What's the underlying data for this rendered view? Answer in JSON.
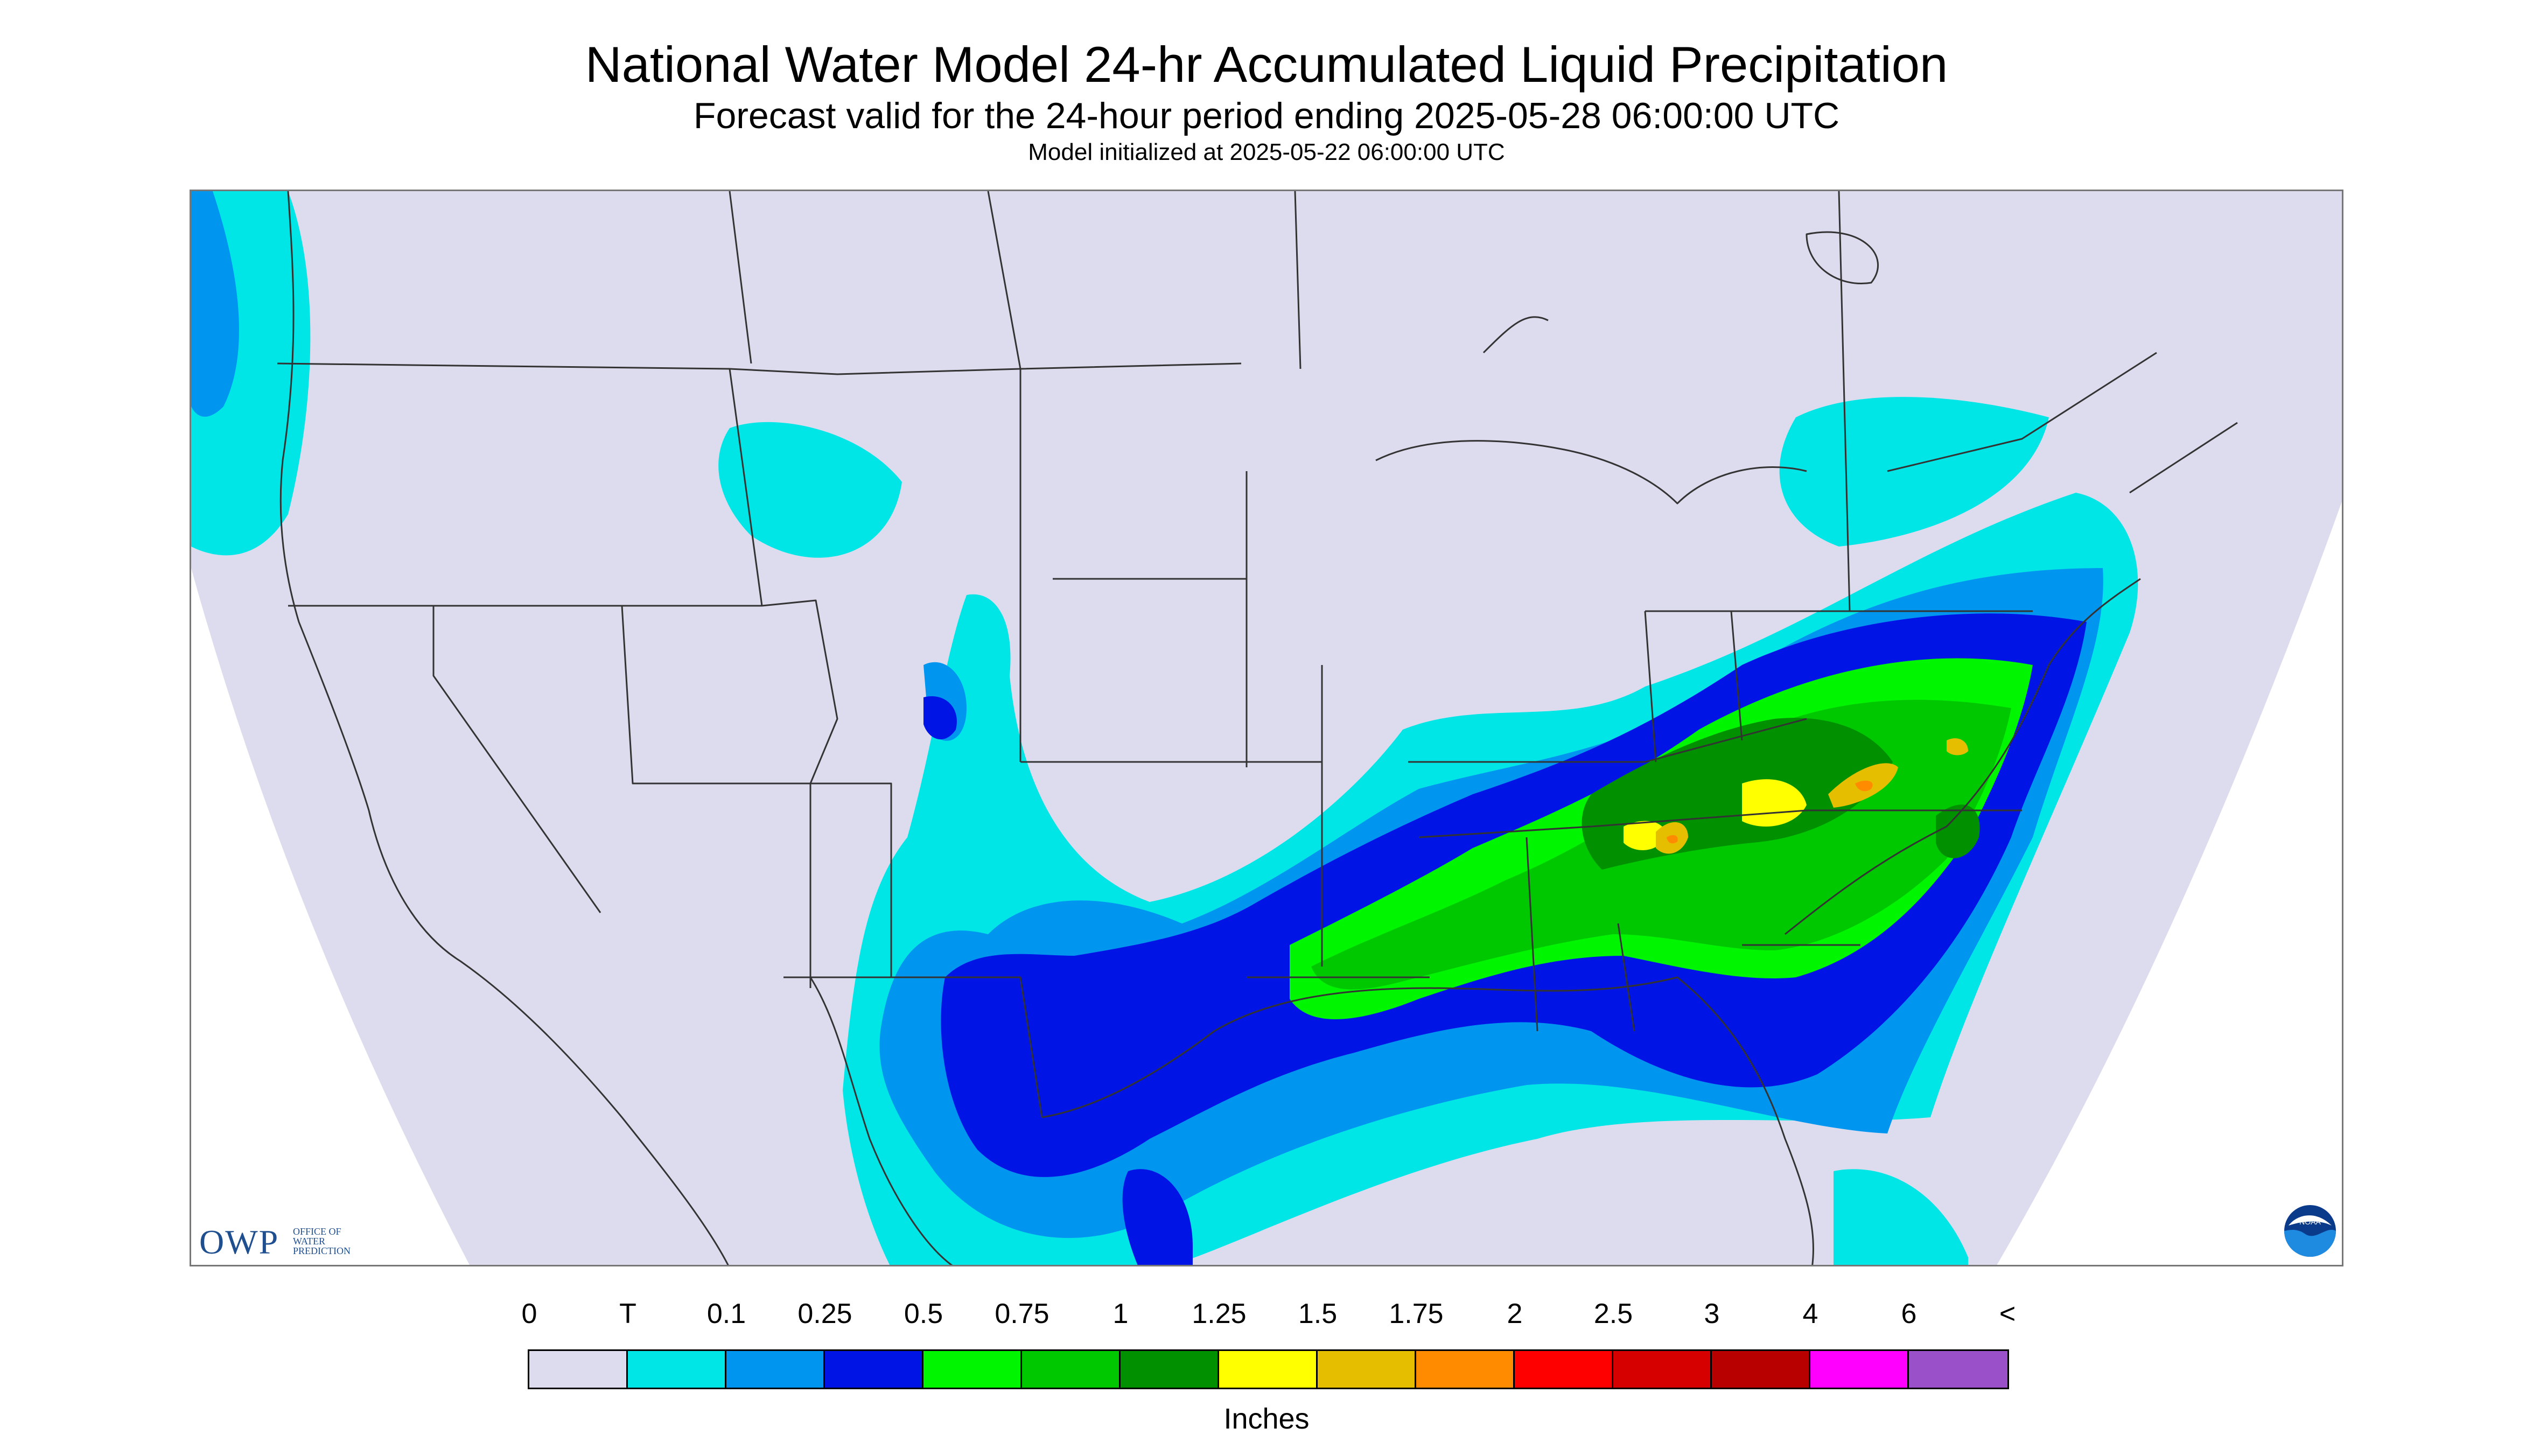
{
  "header": {
    "title": "National Water Model 24-hr Accumulated Liquid Precipitation",
    "subtitle": "Forecast valid for the 24-hour period ending 2025-05-28 06:00:00 UTC",
    "init_line": "Model initialized at 2025-05-22 06:00:00 UTC"
  },
  "map": {
    "background_color": "#dcdcee",
    "outside_color": "#ffffff",
    "boundary_color": "#333333"
  },
  "logos": {
    "owp_letters": "OWP",
    "owp_subtext": "OFFICE OF WATER PREDICTION",
    "noaa_text": "NOAA"
  },
  "legend": {
    "labels": [
      "0",
      "T",
      "0.1",
      "0.25",
      "0.5",
      "0.75",
      "1",
      "1.25",
      "1.5",
      "1.75",
      "2",
      "2.5",
      "3",
      "4",
      "6",
      "<"
    ],
    "colors": [
      "#dcdcee",
      "#00e6e6",
      "#0096f0",
      "#0014e6",
      "#00f500",
      "#00c800",
      "#009000",
      "#ffff00",
      "#e6be00",
      "#ff8c00",
      "#ff0000",
      "#d70000",
      "#b90000",
      "#ff00ff",
      "#9a50c8"
    ],
    "units": "Inches"
  }
}
